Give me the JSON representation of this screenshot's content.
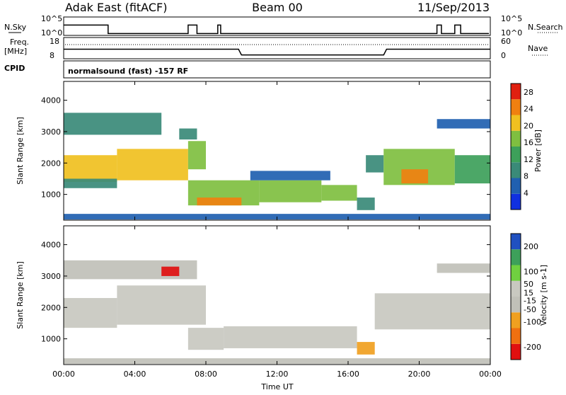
{
  "header": {
    "station": "Adak East (fitACF)",
    "beam": "Beam 00",
    "date": "11/Sep/2013"
  },
  "noise_panel": {
    "left_label": "N.Sky",
    "right_label": "N.Search",
    "left_ticks": [
      "10^5",
      "10^0"
    ],
    "right_ticks": [
      "10^5",
      "10^0"
    ]
  },
  "freq_panel": {
    "left_label_line1": "Freq.",
    "left_label_line2": "[MHz]",
    "right_label": "Nave",
    "left_ticks": [
      "18",
      "8"
    ],
    "right_ticks": [
      "60",
      "0"
    ]
  },
  "cpid_panel": {
    "label": "CPID",
    "text": "normalsound (fast) -157 RF"
  },
  "x_axis": {
    "label": "Time UT",
    "ticks": [
      "00:00",
      "04:00",
      "08:00",
      "12:00",
      "16:00",
      "20:00",
      "00:00"
    ]
  },
  "power_panel": {
    "ylabel": "Slant Range [km]",
    "yticks": [
      "4000",
      "3000",
      "2000",
      "1000"
    ],
    "colorbar_label": "Power [dB]",
    "colorbar_ticks": [
      "28",
      "24",
      "20",
      "16",
      "12",
      "8",
      "4"
    ]
  },
  "velocity_panel": {
    "ylabel": "Slant Range [km]",
    "yticks": [
      "4000",
      "3000",
      "2000",
      "1000"
    ],
    "colorbar_label": "Velocity [m s-1]",
    "colorbar_ticks": [
      "200",
      "100",
      "50",
      "15",
      "-15",
      "-50",
      "-100",
      "-200"
    ]
  },
  "chart_data": [
    {
      "type": "line",
      "title": "N.Sky / N.Search",
      "x": [
        "00:00",
        "02:20",
        "02:30",
        "07:00",
        "07:30",
        "08:40",
        "08:50",
        "21:00",
        "21:15",
        "22:00",
        "22:20"
      ],
      "series": [
        {
          "name": "N.Sky",
          "values": [
            2.8,
            2.8,
            0.5,
            2.8,
            0.5,
            2.8,
            0.5,
            2.8,
            0.5,
            2.8,
            0.5
          ]
        }
      ],
      "ylim": [
        0,
        5
      ]
    },
    {
      "type": "line",
      "title": "Freq. [MHz] / Nave",
      "x": [
        "00:00",
        "09:50",
        "10:00",
        "18:00",
        "18:10",
        "24:00"
      ],
      "series": [
        {
          "name": "Freq.",
          "values": [
            12.5,
            12.5,
            9.8,
            9.8,
            12.5,
            12.5
          ]
        },
        {
          "name": "Nave",
          "values": [
            16,
            16,
            16,
            16,
            16,
            16
          ]
        }
      ],
      "ylim": [
        8,
        18
      ]
    },
    {
      "type": "heatmap",
      "title": "Power [dB]",
      "xlim": [
        0,
        24
      ],
      "ylim": [
        180,
        4600
      ],
      "ylabel": "Slant Range [km]",
      "color_scale": {
        "min": 0,
        "max": 30,
        "colors": [
          "#1030e0",
          "#2060b0",
          "#3a8a78",
          "#3da05a",
          "#7fbf40",
          "#f0c020",
          "#f08010",
          "#e02010"
        ]
      },
      "regions": [
        {
          "t0": 0.0,
          "t1": 3.0,
          "r0": 1400,
          "r1": 2250,
          "value": 20
        },
        {
          "t0": 0.0,
          "t1": 3.0,
          "r0": 1200,
          "r1": 1500,
          "value": 10
        },
        {
          "t0": 3.0,
          "t1": 7.0,
          "r0": 1450,
          "r1": 2450,
          "value": 22
        },
        {
          "t0": 7.0,
          "t1": 8.0,
          "r0": 1800,
          "r1": 2700,
          "value": 16
        },
        {
          "t0": 0.0,
          "t1": 5.5,
          "r0": 2900,
          "r1": 3600,
          "value": 10
        },
        {
          "t0": 6.5,
          "t1": 7.5,
          "r0": 2750,
          "r1": 3100,
          "value": 10
        },
        {
          "t0": 7.0,
          "t1": 11.0,
          "r0": 650,
          "r1": 1450,
          "value": 17
        },
        {
          "t0": 7.5,
          "t1": 10.0,
          "r0": 650,
          "r1": 900,
          "value": 25
        },
        {
          "t0": 11.0,
          "t1": 14.5,
          "r0": 750,
          "r1": 1450,
          "value": 15
        },
        {
          "t0": 14.5,
          "t1": 16.5,
          "r0": 800,
          "r1": 1300,
          "value": 18
        },
        {
          "t0": 16.5,
          "t1": 17.5,
          "r0": 500,
          "r1": 900,
          "value": 8
        },
        {
          "t0": 10.5,
          "t1": 15.0,
          "r0": 1450,
          "r1": 1750,
          "value": 5
        },
        {
          "t0": 17.0,
          "t1": 18.0,
          "r0": 1700,
          "r1": 2250,
          "value": 8
        },
        {
          "t0": 18.0,
          "t1": 22.0,
          "r0": 1300,
          "r1": 2450,
          "value": 17
        },
        {
          "t0": 19.0,
          "t1": 20.5,
          "r0": 1350,
          "r1": 1800,
          "value": 24
        },
        {
          "t0": 22.0,
          "t1": 24.0,
          "r0": 1350,
          "r1": 2250,
          "value": 14
        },
        {
          "t0": 21.0,
          "t1": 24.0,
          "r0": 3100,
          "r1": 3400,
          "value": 6
        },
        {
          "t0": 0.0,
          "t1": 24.0,
          "r0": 200,
          "r1": 380,
          "value": 6
        }
      ]
    },
    {
      "type": "heatmap",
      "title": "Velocity [m s-1]",
      "xlim": [
        0,
        24
      ],
      "ylim": [
        180,
        4600
      ],
      "ylabel": "Slant Range [km]",
      "color_scale": {
        "min": -250,
        "max": 250,
        "colors": [
          "#e01010",
          "#f07010",
          "#f0a020",
          "#c0c0b8",
          "#c8c8c0",
          "#70d040",
          "#3da05a",
          "#2050c0"
        ]
      },
      "regions": [
        {
          "t0": 0.0,
          "t1": 3.0,
          "r0": 1350,
          "r1": 2300,
          "value": 0
        },
        {
          "t0": 3.0,
          "t1": 8.0,
          "r0": 1450,
          "r1": 2700,
          "value": 0
        },
        {
          "t0": 0.0,
          "t1": 7.5,
          "r0": 2900,
          "r1": 3500,
          "value": -60
        },
        {
          "t0": 5.5,
          "t1": 6.5,
          "r0": 3000,
          "r1": 3300,
          "value": -200
        },
        {
          "t0": 7.0,
          "t1": 9.0,
          "r0": 650,
          "r1": 1350,
          "value": 40
        },
        {
          "t0": 9.0,
          "t1": 16.5,
          "r0": 700,
          "r1": 1400,
          "value": 60
        },
        {
          "t0": 16.5,
          "t1": 17.5,
          "r0": 500,
          "r1": 900,
          "value": -70
        },
        {
          "t0": 17.5,
          "t1": 24.0,
          "r0": 1300,
          "r1": 2450,
          "value": 0
        },
        {
          "t0": 21.0,
          "t1": 24.0,
          "r0": 3100,
          "r1": 3400,
          "value": -30
        },
        {
          "t0": 0.0,
          "t1": 24.0,
          "r0": 200,
          "r1": 380,
          "value": -20
        }
      ]
    }
  ]
}
